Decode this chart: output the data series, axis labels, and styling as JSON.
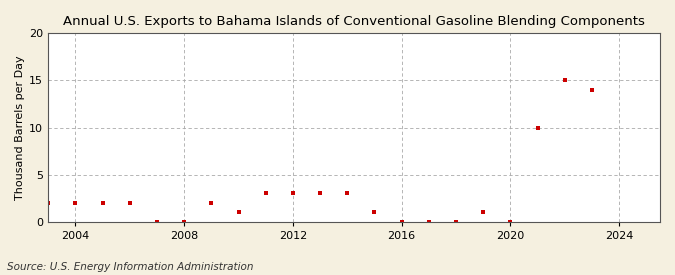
{
  "title": "Annual U.S. Exports to Bahama Islands of Conventional Gasoline Blending Components",
  "ylabel": "Thousand Barrels per Day",
  "source": "Source: U.S. Energy Information Administration",
  "years": [
    2003,
    2004,
    2005,
    2006,
    2007,
    2008,
    2009,
    2010,
    2011,
    2012,
    2013,
    2014,
    2015,
    2016,
    2017,
    2018,
    2019,
    2020,
    2021,
    2022,
    2023,
    2024
  ],
  "values": [
    2.0,
    2.0,
    2.0,
    2.0,
    0.0,
    0.0,
    2.0,
    1.0,
    3.0,
    3.0,
    3.0,
    3.0,
    1.0,
    0.0,
    0.0,
    0.0,
    1.0,
    0.0,
    10.0,
    15.0,
    14.0,
    null
  ],
  "xlim": [
    2003.0,
    2025.5
  ],
  "ylim": [
    0,
    20
  ],
  "yticks": [
    0,
    5,
    10,
    15,
    20
  ],
  "xticks": [
    2004,
    2008,
    2012,
    2016,
    2020,
    2024
  ],
  "marker_color": "#cc0000",
  "marker": "s",
  "marker_size": 3.5,
  "fig_bg_color": "#f5f0e0",
  "plot_bg_color": "#ffffff",
  "grid_color": "#aaaaaa",
  "title_fontsize": 9.5,
  "label_fontsize": 8,
  "tick_fontsize": 8,
  "source_fontsize": 7.5
}
